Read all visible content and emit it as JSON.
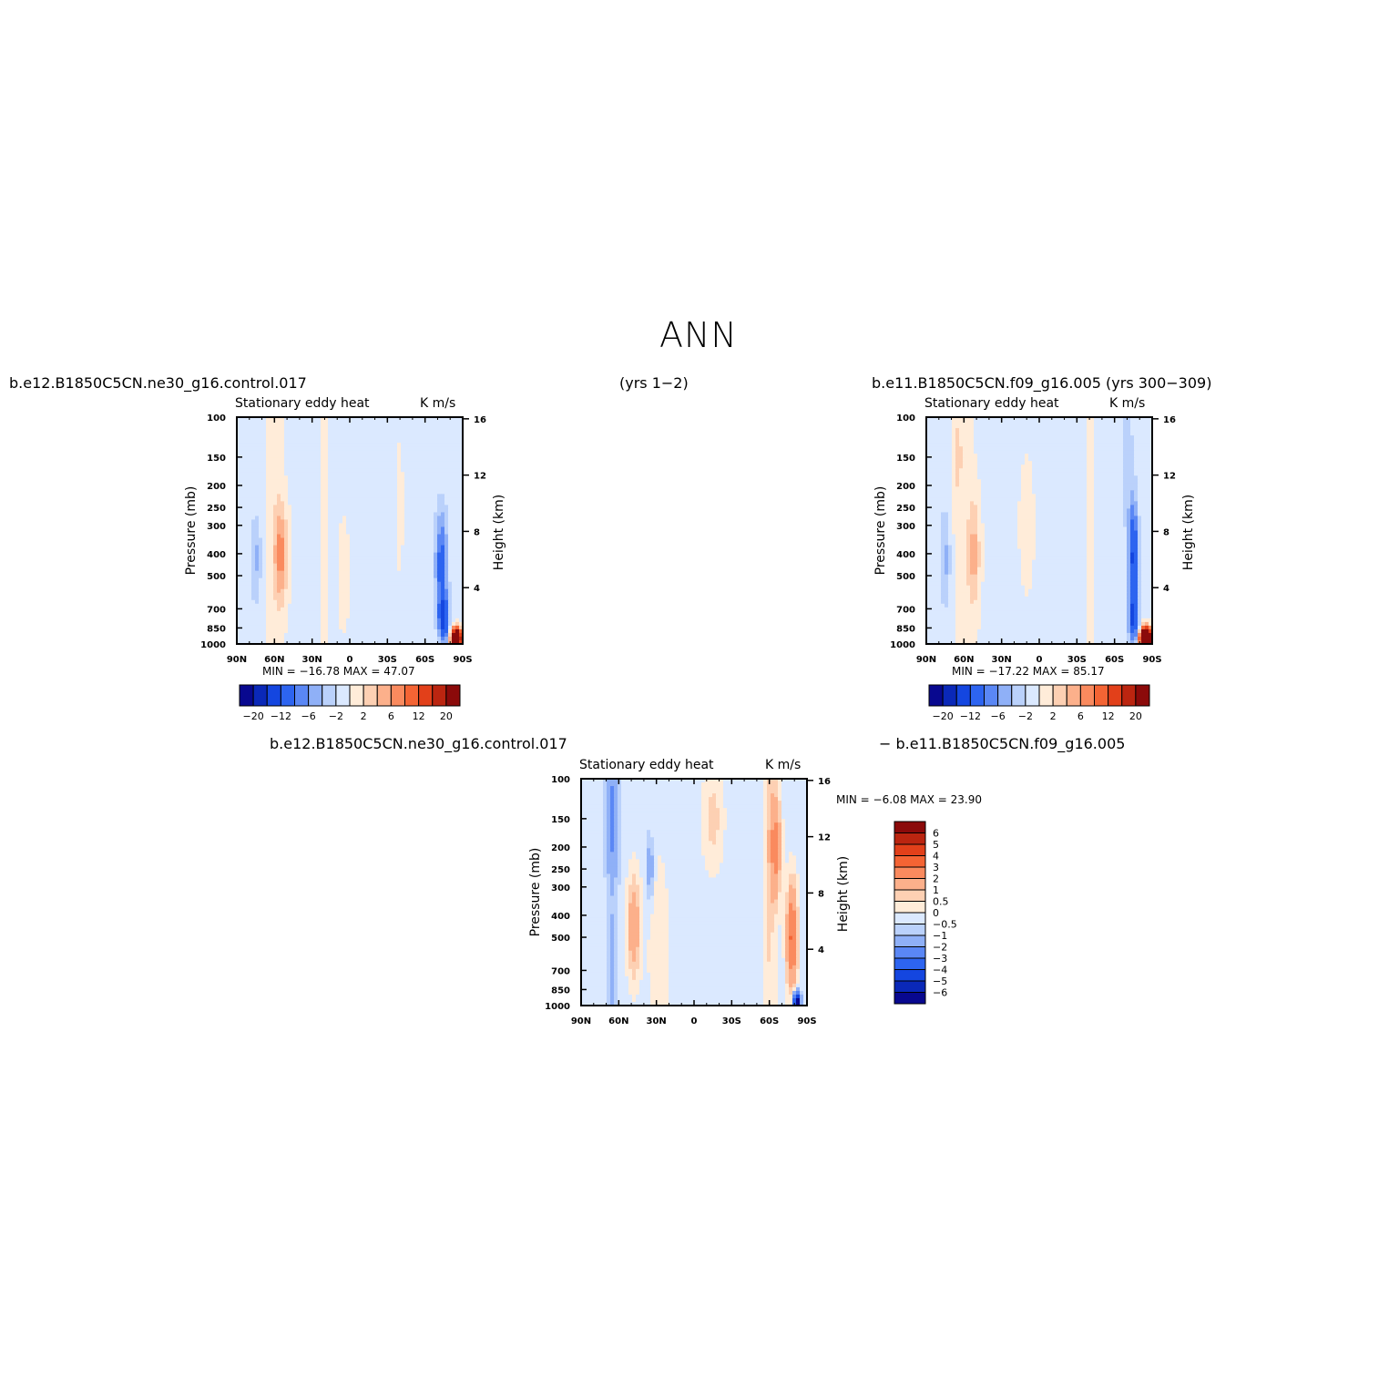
{
  "figure": {
    "title": "ANN"
  },
  "top_left": {
    "case_name": "b.e12.B1850C5CN.ne30_g16.control.017",
    "years": "(yrs 1−2)",
    "stats": "MIN =  −16.78   MAX =   47.07"
  },
  "top_right": {
    "case_label": "b.e11.B1850C5CN.f09_g16.005 (yrs 300−309)",
    "stats": "MIN =  −17.22   MAX =   85.17"
  },
  "difference": {
    "case_a": "b.e12.B1850C5CN.ne30_g16.control.017",
    "case_b": "−  b.e11.B1850C5CN.f09_g16.005",
    "stats": "MIN =   −6.08   MAX =   23.90"
  },
  "chart_data": [
    {
      "type": "heatmap",
      "id": "control-017",
      "title": "Stationary eddy heat",
      "units": "K m/s",
      "xlabel": "",
      "ylabel": "Pressure (mb)",
      "ylabel_right": "Height (km)",
      "x_ticks": [
        "90N",
        "60N",
        "30N",
        "0",
        "30S",
        "60S",
        "90S"
      ],
      "y_ticks": [
        100,
        150,
        200,
        250,
        300,
        400,
        500,
        700,
        850,
        1000
      ],
      "y_right_ticks": [
        16,
        12,
        8,
        4
      ],
      "min": -16.78,
      "max": 47.07,
      "colorbar_labels": [
        "−20",
        "−12",
        "−6",
        "−2",
        "2",
        "6",
        "12",
        "20"
      ],
      "features": [
        {
          "lat": 60,
          "p": 400,
          "value": 8
        },
        {
          "lat": 75,
          "p": 400,
          "value": -5
        },
        {
          "lat": -72,
          "p": 450,
          "value": -10
        },
        {
          "lat": -80,
          "p": 960,
          "value": 40
        }
      ]
    },
    {
      "type": "heatmap",
      "id": "f09-005",
      "title": "Stationary eddy heat",
      "units": "K m/s",
      "xlabel": "",
      "ylabel": "Pressure (mb)",
      "ylabel_right": "Height (km)",
      "x_ticks": [
        "90N",
        "60N",
        "30N",
        "0",
        "30S",
        "60S",
        "90S"
      ],
      "y_ticks": [
        100,
        150,
        200,
        250,
        300,
        400,
        500,
        700,
        850,
        1000
      ],
      "y_right_ticks": [
        16,
        12,
        8,
        4
      ],
      "min": -17.22,
      "max": 85.17,
      "colorbar_labels": [
        "−20",
        "−12",
        "−6",
        "−2",
        "2",
        "6",
        "12",
        "20"
      ],
      "features": [
        {
          "lat": 60,
          "p": 400,
          "value": 6
        },
        {
          "lat": 75,
          "p": 400,
          "value": -5
        },
        {
          "lat": -72,
          "p": 400,
          "value": -12
        },
        {
          "lat": -80,
          "p": 960,
          "value": 60
        }
      ]
    },
    {
      "type": "heatmap",
      "id": "difference",
      "title": "Stationary eddy heat",
      "units": "K m/s",
      "xlabel": "",
      "ylabel": "Pressure (mb)",
      "ylabel_right": "Height (km)",
      "x_ticks": [
        "90N",
        "60N",
        "30N",
        "0",
        "30S",
        "60S",
        "90S"
      ],
      "y_ticks": [
        100,
        150,
        200,
        250,
        300,
        400,
        500,
        700,
        850,
        1000
      ],
      "y_right_ticks": [
        16,
        12,
        8,
        4
      ],
      "min": -6.08,
      "max": 23.9,
      "colorbar_labels": [
        "6",
        "5",
        "4",
        "3",
        "2",
        "1",
        "0.5",
        "0",
        "−0.5",
        "−1",
        "−2",
        "−3",
        "−4",
        "−5",
        "−6"
      ],
      "features": [
        {
          "lat": 65,
          "p": 160,
          "value": -2
        },
        {
          "lat": 45,
          "p": 450,
          "value": 1.5
        },
        {
          "lat": -65,
          "p": 200,
          "value": 2
        },
        {
          "lat": -75,
          "p": 500,
          "value": 3
        },
        {
          "lat": -80,
          "p": 960,
          "value": -5
        }
      ]
    }
  ],
  "palette": {
    "negative": [
      "#08088f",
      "#0a28b8",
      "#1446e0",
      "#2d64f0",
      "#5a87f5",
      "#8fb0f7",
      "#bad1fb",
      "#dbe9ff"
    ],
    "positive": [
      "#ffecd9",
      "#fdd0b3",
      "#fcb08b",
      "#fa8a5e",
      "#f46434",
      "#e2401a",
      "#bb2510",
      "#8b0a0a"
    ]
  }
}
